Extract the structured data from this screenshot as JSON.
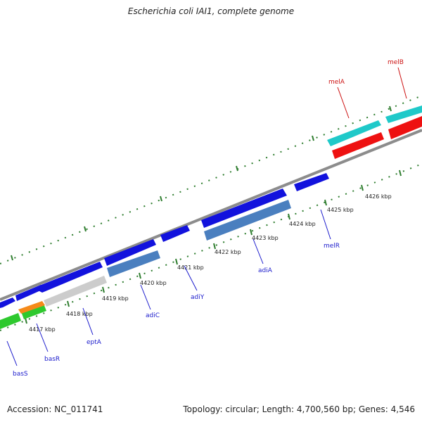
{
  "title": "Escherichia coli IAI1, complete genome",
  "footer": {
    "accession": "Accession: NC_011741",
    "summary": "Topology: circular; Length: 4,700,560 bp; Genes: 4,546"
  },
  "colors": {
    "backbone": "#8c8c8c",
    "tick": "#2e7d2e",
    "label_blue": "#1a1acc",
    "label_red": "#cc1111"
  },
  "kbp_labels": [
    "4417 kbp",
    "4418 kbp",
    "4419 kbp",
    "4420 kbp",
    "4421 kbp",
    "4422 kbp",
    "4423 kbp",
    "4424 kbp",
    "4425 kbp",
    "4426 kbp"
  ],
  "gene_labels": [
    {
      "text": "basS",
      "color": "#1a1acc"
    },
    {
      "text": "basR",
      "color": "#1a1acc"
    },
    {
      "text": "eptA",
      "color": "#1a1acc"
    },
    {
      "text": "adiC",
      "color": "#1a1acc"
    },
    {
      "text": "adiY",
      "color": "#1a1acc"
    },
    {
      "text": "adiA",
      "color": "#1a1acc"
    },
    {
      "text": "melR",
      "color": "#1a1acc"
    },
    {
      "text": "melA",
      "color": "#cc1111"
    },
    {
      "text": "melB",
      "color": "#cc1111"
    }
  ]
}
